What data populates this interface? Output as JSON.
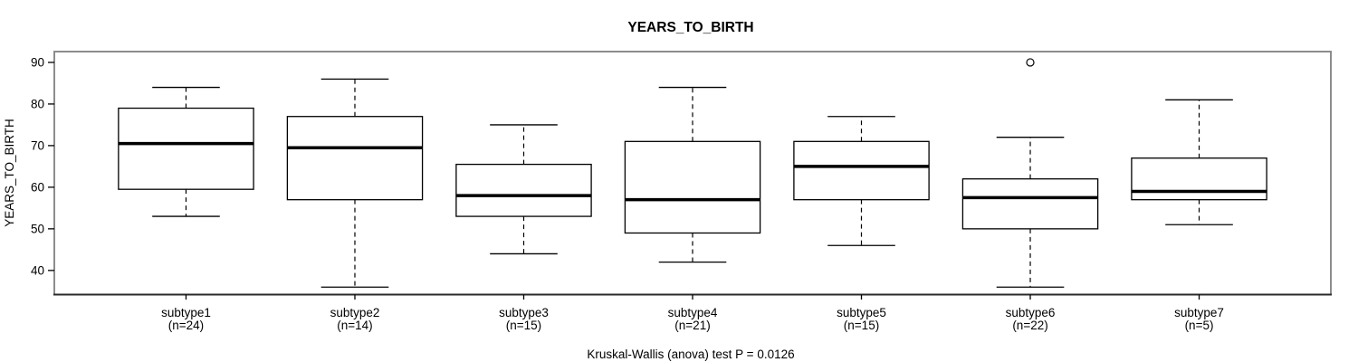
{
  "chart_data": {
    "type": "boxplot",
    "title": "YEARS_TO_BIRTH",
    "ylabel": "YEARS_TO_BIRTH",
    "caption": "Kruskal-Wallis (anova) test P = 0.0126",
    "ylim": [
      34.2,
      92.6
    ],
    "yticks": [
      40,
      50,
      60,
      70,
      80,
      90
    ],
    "grid": false,
    "legend": "none",
    "groups": [
      {
        "label": "subtype1",
        "n_label": "(n=24)",
        "n": 24,
        "whisker_low": 53,
        "q1": 59.5,
        "median": 70.5,
        "q3": 79,
        "whisker_high": 84,
        "outliers": []
      },
      {
        "label": "subtype2",
        "n_label": "(n=14)",
        "n": 14,
        "whisker_low": 36,
        "q1": 57,
        "median": 69.5,
        "q3": 77,
        "whisker_high": 86,
        "outliers": []
      },
      {
        "label": "subtype3",
        "n_label": "(n=15)",
        "n": 15,
        "whisker_low": 44,
        "q1": 53,
        "median": 58,
        "q3": 65.5,
        "whisker_high": 75,
        "outliers": []
      },
      {
        "label": "subtype4",
        "n_label": "(n=21)",
        "n": 21,
        "whisker_low": 42,
        "q1": 49,
        "median": 57,
        "q3": 71,
        "whisker_high": 84,
        "outliers": []
      },
      {
        "label": "subtype5",
        "n_label": "(n=15)",
        "n": 15,
        "whisker_low": 46,
        "q1": 57,
        "median": 65,
        "q3": 71,
        "whisker_high": 77,
        "outliers": []
      },
      {
        "label": "subtype6",
        "n_label": "(n=22)",
        "n": 22,
        "whisker_low": 36,
        "q1": 50,
        "median": 57.5,
        "q3": 62,
        "whisker_high": 72,
        "outliers": [
          90
        ]
      },
      {
        "label": "subtype7",
        "n_label": "(n=5)",
        "n": 5,
        "whisker_low": 51,
        "q1": 57,
        "median": 59,
        "q3": 67,
        "whisker_high": 81,
        "outliers": []
      }
    ],
    "colors": {
      "background": "#ffffff",
      "frame": "#8c8c8c",
      "bottom_axis": "#2a2a2a",
      "axis": "#000000",
      "box_stroke": "#000000",
      "box_fill": "#ffffff",
      "median": "#000000",
      "whisker": "#000000",
      "outlier": "#000000",
      "text": "#000000"
    }
  }
}
